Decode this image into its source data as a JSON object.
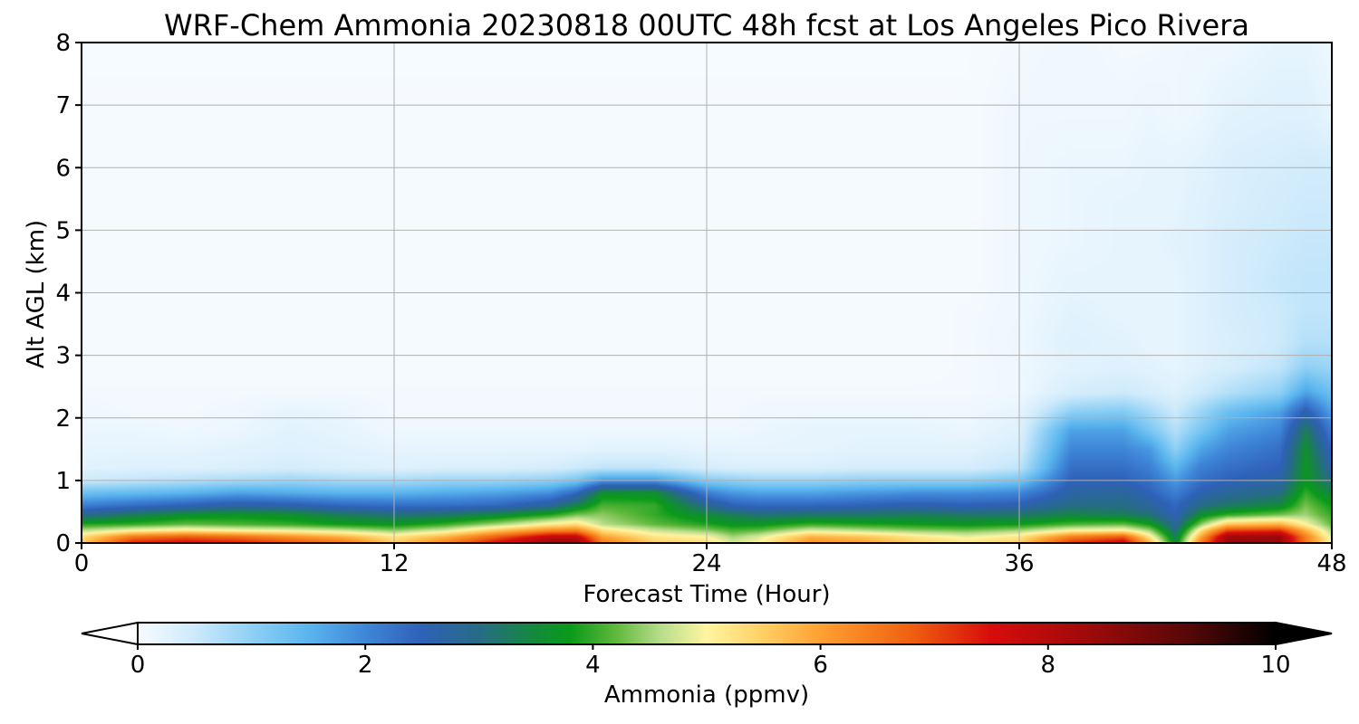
{
  "chart_data": {
    "type": "heatmap",
    "title": "WRF-Chem Ammonia  20230818 00UTC 48h fcst at Los Angeles Pico Rivera",
    "xlabel": "Forecast Time (Hour)",
    "ylabel": "Alt AGL (km)",
    "xlim": [
      0,
      48
    ],
    "ylim": [
      0,
      8
    ],
    "xticks": [
      "0",
      "12",
      "24",
      "36",
      "48"
    ],
    "yticks": [
      "0",
      "1",
      "2",
      "3",
      "4",
      "5",
      "6",
      "7",
      "8"
    ],
    "grid": true,
    "colorbar": {
      "label": "Ammonia  (ppmv)",
      "range": [
        0,
        10
      ],
      "ticks": [
        "0",
        "2",
        "4",
        "6",
        "8",
        "10"
      ],
      "extend": "both",
      "palette": [
        {
          "value": 0,
          "color": "#f7fbff"
        },
        {
          "value": 0.5,
          "color": "#cdeafb"
        },
        {
          "value": 1.0,
          "color": "#8fd0f5"
        },
        {
          "value": 1.5,
          "color": "#5ab5ee"
        },
        {
          "value": 2.0,
          "color": "#3f86d8"
        },
        {
          "value": 2.5,
          "color": "#2f61b8"
        },
        {
          "value": 3.0,
          "color": "#276c86"
        },
        {
          "value": 3.5,
          "color": "#138a3a"
        },
        {
          "value": 3.8,
          "color": "#0a9a1a"
        },
        {
          "value": 4.2,
          "color": "#5fb83b"
        },
        {
          "value": 4.6,
          "color": "#b9dd8c"
        },
        {
          "value": 5.0,
          "color": "#fff5a0"
        },
        {
          "value": 5.5,
          "color": "#ffcf64"
        },
        {
          "value": 6.0,
          "color": "#ffa032"
        },
        {
          "value": 6.8,
          "color": "#ef6010"
        },
        {
          "value": 7.5,
          "color": "#d80c0c"
        },
        {
          "value": 8.3,
          "color": "#a20a0a"
        },
        {
          "value": 9.2,
          "color": "#5a0808"
        },
        {
          "value": 10,
          "color": "#000000"
        }
      ]
    },
    "x": [
      0,
      2,
      4,
      6,
      8,
      10,
      12,
      14,
      16,
      18,
      19,
      20,
      22,
      24,
      25,
      26,
      28,
      30,
      32,
      34,
      36,
      38,
      40,
      41,
      42,
      43,
      44,
      46,
      47,
      48
    ],
    "y": [
      0,
      0.1,
      0.2,
      0.3,
      0.45,
      0.6,
      0.8,
      1.0,
      1.2,
      1.5,
      1.8,
      2.1,
      2.4,
      2.8,
      3.2,
      3.7,
      4.2,
      4.8,
      5.4,
      6.0,
      6.8,
      8.0
    ],
    "values": [
      [
        5.5,
        7.4,
        7.6,
        7.4,
        7.0,
        6.6,
        5.5,
        6.4,
        7.6,
        8.5,
        8.5,
        6.5,
        5.5,
        5.3,
        4.8,
        5.0,
        6.2,
        6.0,
        5.5,
        5.2,
        5.5,
        7.2,
        7.8,
        5.8,
        3.5,
        6.5,
        8.5,
        8.5,
        6.5,
        5.0
      ],
      [
        5.3,
        6.5,
        6.8,
        6.6,
        6.2,
        5.8,
        5.2,
        5.8,
        6.8,
        7.8,
        7.8,
        6.0,
        5.2,
        5.0,
        4.5,
        4.8,
        5.8,
        5.6,
        5.2,
        4.9,
        5.2,
        6.4,
        6.8,
        5.2,
        3.3,
        6.0,
        8.3,
        8.4,
        6.4,
        4.8
      ],
      [
        4.6,
        5.0,
        5.2,
        5.0,
        4.9,
        4.7,
        4.4,
        4.8,
        5.6,
        6.3,
        6.4,
        5.3,
        4.7,
        4.4,
        4.1,
        4.2,
        4.8,
        4.6,
        4.4,
        4.3,
        4.5,
        5.0,
        5.1,
        4.5,
        3.0,
        5.3,
        7.0,
        7.2,
        5.8,
        4.5
      ],
      [
        3.9,
        4.0,
        4.2,
        4.1,
        4.0,
        3.8,
        3.7,
        4.0,
        4.5,
        5.1,
        5.3,
        4.6,
        4.2,
        3.9,
        3.7,
        3.7,
        4.0,
        3.9,
        3.8,
        3.7,
        3.8,
        4.1,
        4.2,
        3.8,
        2.8,
        4.4,
        5.6,
        5.8,
        5.0,
        4.2
      ],
      [
        2.9,
        3.3,
        3.6,
        3.7,
        3.6,
        3.3,
        3.1,
        3.2,
        3.5,
        3.9,
        4.3,
        4.4,
        4.0,
        3.5,
        3.3,
        3.1,
        3.2,
        3.2,
        3.3,
        3.2,
        3.2,
        3.4,
        3.3,
        3.1,
        2.5,
        3.6,
        4.0,
        4.3,
        4.5,
        4.0
      ],
      [
        2.1,
        2.3,
        2.5,
        2.7,
        2.6,
        2.4,
        2.3,
        2.3,
        2.4,
        2.8,
        3.4,
        4.1,
        4.0,
        2.9,
        2.5,
        2.4,
        2.4,
        2.5,
        2.6,
        2.5,
        2.6,
        3.0,
        3.0,
        2.8,
        2.4,
        3.0,
        3.2,
        3.5,
        4.3,
        3.8
      ],
      [
        1.3,
        1.4,
        1.5,
        1.7,
        1.6,
        1.5,
        1.5,
        1.6,
        1.7,
        1.9,
        2.4,
        3.6,
        3.6,
        2.1,
        1.8,
        1.7,
        1.7,
        1.8,
        1.9,
        1.9,
        2.0,
        2.7,
        2.8,
        2.5,
        2.1,
        2.6,
        2.8,
        3.0,
        4.0,
        3.4
      ],
      [
        0.5,
        0.6,
        0.7,
        0.8,
        0.9,
        0.8,
        0.8,
        0.9,
        0.9,
        1.0,
        1.2,
        1.8,
        1.8,
        1.1,
        1.0,
        0.9,
        0.9,
        1.0,
        1.0,
        1.0,
        1.2,
        2.5,
        2.5,
        2.3,
        1.8,
        2.3,
        2.5,
        2.7,
        3.7,
        3.0
      ],
      [
        0.25,
        0.3,
        0.3,
        0.35,
        0.4,
        0.35,
        0.3,
        0.35,
        0.35,
        0.4,
        0.5,
        0.6,
        0.6,
        0.4,
        0.35,
        0.35,
        0.35,
        0.4,
        0.4,
        0.4,
        0.6,
        2.3,
        2.3,
        2.1,
        1.5,
        2.1,
        2.3,
        2.5,
        3.7,
        2.7
      ],
      [
        0.2,
        0.2,
        0.2,
        0.25,
        0.3,
        0.25,
        0.2,
        0.2,
        0.2,
        0.2,
        0.2,
        0.25,
        0.25,
        0.2,
        0.2,
        0.2,
        0.2,
        0.25,
        0.25,
        0.25,
        0.4,
        2.0,
        2.0,
        1.8,
        1.0,
        1.7,
        2.0,
        2.3,
        3.6,
        2.4
      ],
      [
        0.15,
        0.15,
        0.1,
        0.15,
        0.25,
        0.2,
        0.1,
        0.1,
        0.1,
        0.1,
        0.1,
        0.1,
        0.1,
        0.1,
        0.1,
        0.15,
        0.2,
        0.2,
        0.2,
        0.15,
        0.3,
        1.7,
        1.7,
        1.2,
        0.7,
        1.2,
        1.7,
        2.0,
        3.3,
        2.1
      ],
      [
        0.1,
        0.05,
        0.05,
        0.1,
        0.2,
        0.15,
        0.05,
        0.05,
        0.05,
        0.05,
        0.05,
        0.05,
        0.05,
        0.05,
        0.05,
        0.1,
        0.1,
        0.1,
        0.1,
        0.1,
        0.2,
        1.0,
        1.1,
        0.8,
        0.5,
        0.9,
        1.3,
        1.7,
        2.6,
        1.7
      ],
      [
        0.05,
        0.05,
        0.05,
        0.05,
        0.05,
        0.05,
        0.05,
        0.05,
        0.05,
        0.05,
        0.05,
        0.05,
        0.05,
        0.05,
        0.05,
        0.05,
        0.05,
        0.05,
        0.05,
        0.05,
        0.1,
        0.4,
        0.5,
        0.4,
        0.3,
        0.5,
        0.7,
        1.0,
        1.7,
        1.3
      ],
      [
        0.02,
        0.02,
        0.02,
        0.02,
        0.02,
        0.02,
        0.02,
        0.02,
        0.02,
        0.02,
        0.02,
        0.02,
        0.02,
        0.02,
        0.02,
        0.02,
        0.02,
        0.02,
        0.02,
        0.05,
        0.1,
        0.25,
        0.3,
        0.25,
        0.2,
        0.3,
        0.4,
        0.6,
        1.0,
        0.9
      ],
      [
        0.02,
        0.02,
        0.02,
        0.02,
        0.02,
        0.02,
        0.02,
        0.02,
        0.02,
        0.02,
        0.02,
        0.02,
        0.02,
        0.02,
        0.02,
        0.02,
        0.02,
        0.02,
        0.02,
        0.05,
        0.12,
        0.3,
        0.25,
        0.2,
        0.2,
        0.3,
        0.35,
        0.5,
        0.7,
        0.7
      ],
      [
        0.02,
        0.02,
        0.02,
        0.02,
        0.02,
        0.02,
        0.02,
        0.02,
        0.02,
        0.02,
        0.02,
        0.02,
        0.02,
        0.02,
        0.02,
        0.02,
        0.02,
        0.02,
        0.02,
        0.05,
        0.1,
        0.25,
        0.2,
        0.2,
        0.2,
        0.3,
        0.4,
        0.5,
        0.6,
        0.6
      ],
      [
        0.02,
        0.02,
        0.02,
        0.02,
        0.02,
        0.02,
        0.02,
        0.02,
        0.02,
        0.02,
        0.02,
        0.02,
        0.02,
        0.02,
        0.02,
        0.02,
        0.02,
        0.02,
        0.02,
        0.02,
        0.1,
        0.2,
        0.2,
        0.2,
        0.2,
        0.3,
        0.4,
        0.55,
        0.6,
        0.6
      ],
      [
        0.02,
        0.02,
        0.02,
        0.02,
        0.02,
        0.02,
        0.02,
        0.02,
        0.02,
        0.02,
        0.02,
        0.02,
        0.02,
        0.02,
        0.02,
        0.02,
        0.02,
        0.02,
        0.02,
        0.02,
        0.1,
        0.15,
        0.2,
        0.2,
        0.25,
        0.3,
        0.4,
        0.5,
        0.55,
        0.55
      ],
      [
        0.02,
        0.02,
        0.02,
        0.02,
        0.02,
        0.02,
        0.02,
        0.02,
        0.02,
        0.02,
        0.02,
        0.02,
        0.02,
        0.02,
        0.02,
        0.02,
        0.02,
        0.02,
        0.02,
        0.02,
        0.1,
        0.15,
        0.2,
        0.2,
        0.2,
        0.3,
        0.35,
        0.45,
        0.5,
        0.5
      ],
      [
        0.02,
        0.02,
        0.02,
        0.02,
        0.02,
        0.02,
        0.02,
        0.02,
        0.02,
        0.02,
        0.02,
        0.02,
        0.02,
        0.02,
        0.02,
        0.02,
        0.02,
        0.02,
        0.02,
        0.02,
        0.1,
        0.15,
        0.15,
        0.2,
        0.2,
        0.25,
        0.35,
        0.4,
        0.45,
        0.45
      ],
      [
        0.02,
        0.02,
        0.02,
        0.02,
        0.02,
        0.02,
        0.02,
        0.02,
        0.02,
        0.02,
        0.02,
        0.02,
        0.02,
        0.02,
        0.02,
        0.02,
        0.02,
        0.02,
        0.02,
        0.02,
        0.1,
        0.1,
        0.1,
        0.15,
        0.1,
        0.15,
        0.25,
        0.3,
        0.3,
        0.2
      ],
      [
        0.01,
        0.01,
        0.01,
        0.01,
        0.01,
        0.01,
        0.01,
        0.01,
        0.01,
        0.01,
        0.01,
        0.01,
        0.01,
        0.01,
        0.01,
        0.01,
        0.01,
        0.01,
        0.01,
        0.01,
        0.05,
        0.1,
        0.05,
        0.05,
        0.1,
        0.1,
        0.1,
        0.2,
        0.2,
        0.1
      ]
    ]
  }
}
